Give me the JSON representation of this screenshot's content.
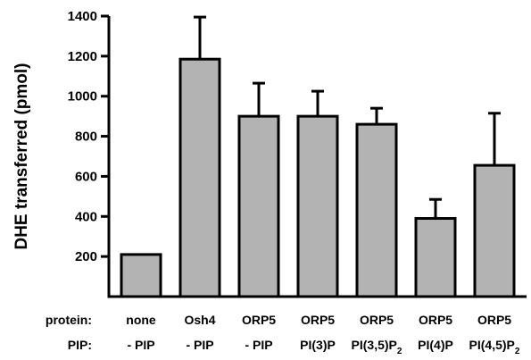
{
  "chart_data": {
    "type": "bar",
    "ylabel": "DHE transferred (pmol)",
    "ylim": [
      0,
      1400
    ],
    "yticks": [
      200,
      400,
      600,
      800,
      1000,
      1200,
      1400
    ],
    "grid": false,
    "bar_color": "#b3b3b3",
    "row_labels": {
      "protein": "protein:",
      "pip": "PIP:"
    },
    "categories": [
      {
        "protein": "none",
        "pip": "- PIP",
        "pip_sub": "",
        "value": 210,
        "error": 0
      },
      {
        "protein": "Osh4",
        "pip": "- PIP",
        "pip_sub": "",
        "value": 1185,
        "error": 210
      },
      {
        "protein": "ORP5",
        "pip": "- PIP",
        "pip_sub": "",
        "value": 900,
        "error": 165
      },
      {
        "protein": "ORP5",
        "pip": "PI(3)P",
        "pip_sub": "",
        "value": 900,
        "error": 125
      },
      {
        "protein": "ORP5",
        "pip": "PI(3,5)P",
        "pip_sub": "2",
        "value": 860,
        "error": 80
      },
      {
        "protein": "ORP5",
        "pip": "PI(4)P",
        "pip_sub": "",
        "value": 390,
        "error": 95
      },
      {
        "protein": "ORP5",
        "pip": "PI(4,5)P",
        "pip_sub": "2",
        "value": 655,
        "error": 260
      }
    ]
  }
}
